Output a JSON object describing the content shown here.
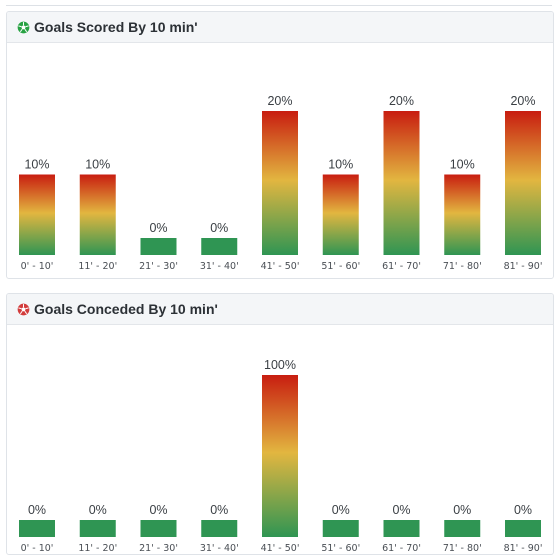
{
  "colors": {
    "scored_icon": "#27a243",
    "conceded_icon": "#d23c3c",
    "bar_top": "#c81d10",
    "bar_mid": "#e2b640",
    "bar_bottom": "#2f9553"
  },
  "chart_data": [
    {
      "type": "bar",
      "title": "Goals Scored By 10 min'",
      "icon": "soccer-ball-green-icon",
      "categories": [
        "0' - 10'",
        "11' - 20'",
        "21' - 30'",
        "31' - 40'",
        "41' - 50'",
        "51' - 60'",
        "61' - 70'",
        "71' - 80'",
        "81' - 90'"
      ],
      "values": [
        10,
        10,
        0,
        0,
        20,
        10,
        20,
        10,
        20
      ],
      "value_labels": [
        "10%",
        "10%",
        "0%",
        "0%",
        "20%",
        "10%",
        "20%",
        "10%",
        "20%"
      ],
      "ylim": [
        0,
        20
      ],
      "grid": false
    },
    {
      "type": "bar",
      "title": "Goals Conceded By 10 min'",
      "icon": "soccer-ball-red-icon",
      "categories": [
        "0' - 10'",
        "11' - 20'",
        "21' - 30'",
        "31' - 40'",
        "41' - 50'",
        "51' - 60'",
        "61' - 70'",
        "71' - 80'",
        "81' - 90'"
      ],
      "values": [
        0,
        0,
        0,
        0,
        100,
        0,
        0,
        0,
        0
      ],
      "value_labels": [
        "0%",
        "0%",
        "0%",
        "0%",
        "100%",
        "0%",
        "0%",
        "0%",
        "0%"
      ],
      "ylim": [
        0,
        100
      ],
      "grid": false
    }
  ]
}
